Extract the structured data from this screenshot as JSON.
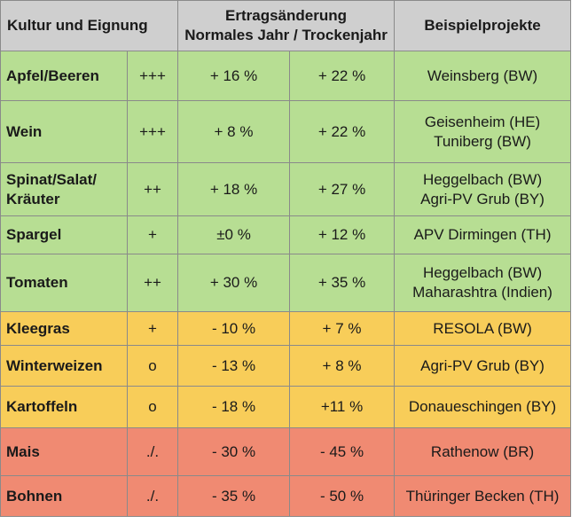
{
  "header": {
    "culture": "Kultur und Eignung",
    "change_title": "Ertragsänderung",
    "normal_year": "Normales Jahr /",
    "dry_year": "Trockenjahr",
    "examples": "Beispielprojekte"
  },
  "rows": [
    {
      "name": "Apfel/Beeren",
      "rating": "+++",
      "normal": "+ 16 %",
      "dry": "+ 22 %",
      "projects": [
        "Weinsberg (BW)"
      ],
      "color": "green"
    },
    {
      "name": "Wein",
      "rating": "+++",
      "normal": "+ 8 %",
      "dry": "+ 22 %",
      "projects": [
        "Geisenheim (HE)",
        "Tuniberg (BW)"
      ],
      "color": "green"
    },
    {
      "name": "Spinat/Salat/\nKräuter",
      "rating": "++",
      "normal": "+ 18 %",
      "dry": "+ 27 %",
      "projects": [
        "Heggelbach (BW)",
        "Agri-PV Grub (BY)"
      ],
      "color": "green"
    },
    {
      "name": "Spargel",
      "rating": "+",
      "normal": "±0 %",
      "dry": "+ 12 %",
      "projects": [
        "APV Dirmingen (TH)"
      ],
      "color": "green"
    },
    {
      "name": "Tomaten",
      "rating": "++",
      "normal": "+ 30 %",
      "dry": "+ 35 %",
      "projects": [
        "Heggelbach (BW)",
        "Maharashtra (Indien)"
      ],
      "color": "green"
    },
    {
      "name": "Kleegras",
      "rating": "+",
      "normal": "- 10 %",
      "dry": "+ 7 %",
      "projects": [
        "RESOLA (BW)"
      ],
      "color": "yellow"
    },
    {
      "name": "Winterweizen",
      "rating": "o",
      "normal": "- 13 %",
      "dry": "+ 8 %",
      "projects": [
        "Agri-PV Grub (BY)"
      ],
      "color": "yellow"
    },
    {
      "name": "Kartoffeln",
      "rating": "o",
      "normal": "- 18 %",
      "dry": "+11 %",
      "projects": [
        "Donaueschingen (BY)"
      ],
      "color": "yellow"
    },
    {
      "name": "Mais",
      "rating": "./.",
      "normal": "- 30 %",
      "dry": "- 45 %",
      "projects": [
        "Rathenow (BR)"
      ],
      "color": "red"
    },
    {
      "name": "Bohnen",
      "rating": "./.",
      "normal": "- 35 %",
      "dry": "- 50 %",
      "projects": [
        "Thüringer Becken (TH)"
      ],
      "color": "red"
    }
  ]
}
